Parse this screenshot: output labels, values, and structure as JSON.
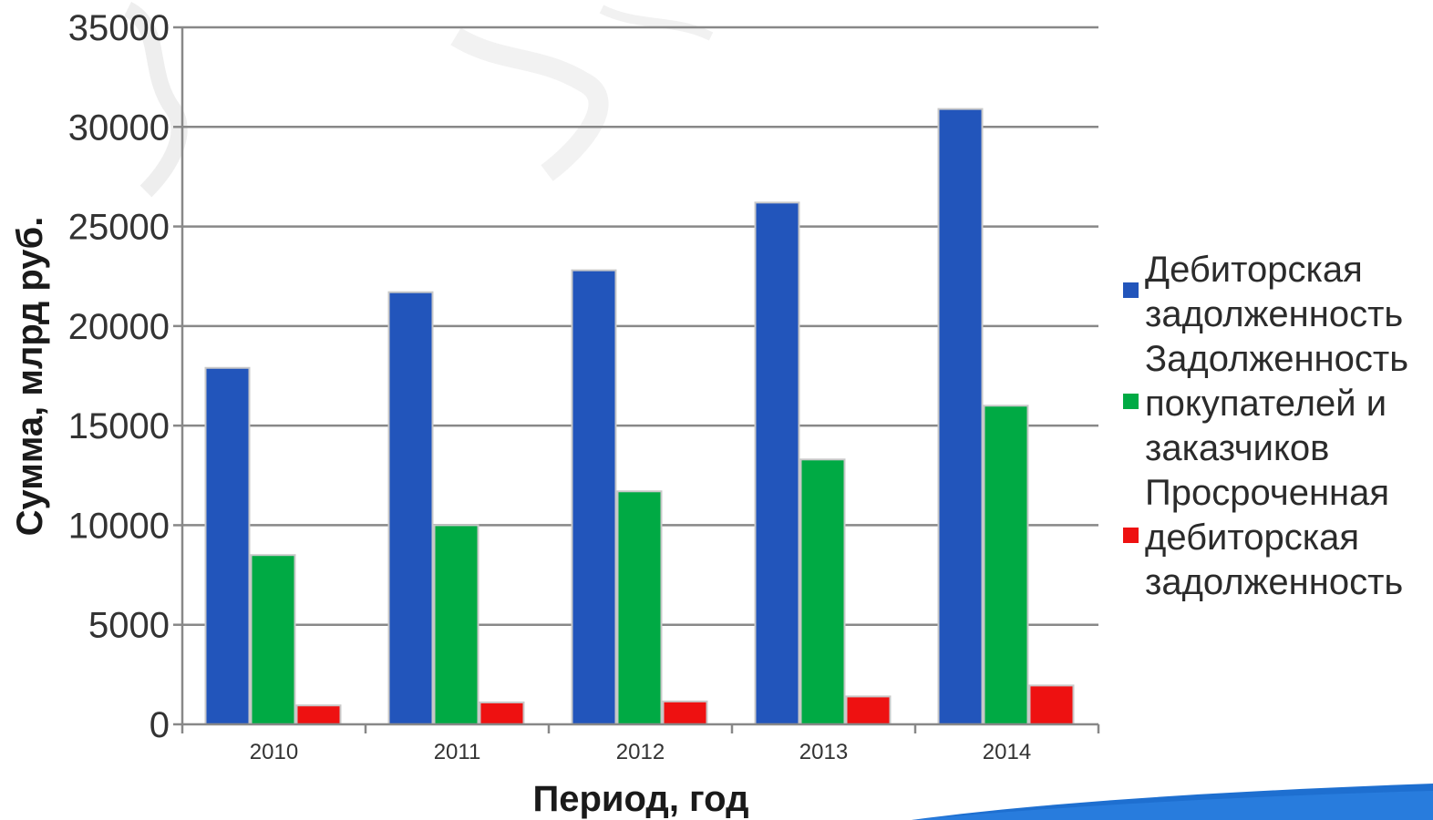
{
  "colors": {
    "series_0": "#2255bb",
    "series_1": "#00aa44",
    "series_2": "#ee1111",
    "grid": "#888888",
    "swoosh": "#1e6fd0"
  },
  "chart_data": {
    "type": "bar",
    "title": "",
    "xlabel": "Период, год",
    "ylabel": "Сумма, млрд руб.",
    "categories": [
      "2010",
      "2011",
      "2012",
      "2013",
      "2014"
    ],
    "ylim": [
      0,
      35000
    ],
    "yticks": [
      0,
      5000,
      10000,
      15000,
      20000,
      25000,
      30000,
      35000
    ],
    "grid": true,
    "legend_position": "right",
    "series": [
      {
        "name": "Дебиторская задолженность",
        "values": [
          17900,
          21700,
          22800,
          26200,
          30900
        ]
      },
      {
        "name": "Задолженность покупателей и заказчиков",
        "values": [
          8500,
          10000,
          11700,
          13300,
          16000
        ]
      },
      {
        "name": "Просроченная дебиторская задолженность",
        "values": [
          950,
          1100,
          1150,
          1400,
          1950
        ]
      }
    ]
  },
  "legend": {
    "items": [
      {
        "label": "Дебиторская\nзадолженность",
        "color_key": "series_0"
      },
      {
        "label": "Задолженность\nпокупателей и\nзаказчиков",
        "color_key": "series_1"
      },
      {
        "label": "Просроченная\nдебиторская\nзадолженность",
        "color_key": "series_2"
      }
    ]
  }
}
